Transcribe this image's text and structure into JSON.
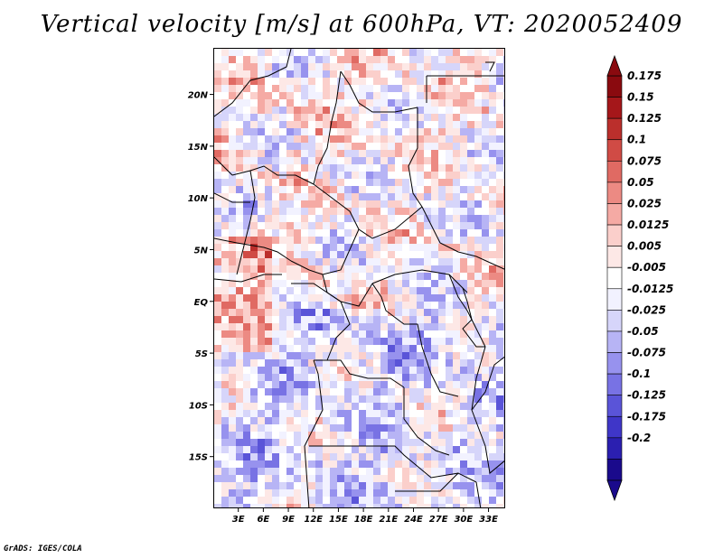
{
  "title": "Vertical velocity [m/s] at 600hPa, VT: 2020052409",
  "credit": "GrADS: IGES/COLA",
  "map": {
    "lon_range": [
      0,
      35
    ],
    "lat_range": [
      -20,
      24.5
    ],
    "lat_ticks": [
      {
        "value": 20,
        "label": "20N"
      },
      {
        "value": 15,
        "label": "15N"
      },
      {
        "value": 10,
        "label": "10N"
      },
      {
        "value": 5,
        "label": "5N"
      },
      {
        "value": 0,
        "label": "EQ"
      },
      {
        "value": -5,
        "label": "5S"
      },
      {
        "value": -10,
        "label": "10S"
      },
      {
        "value": -15,
        "label": "15S"
      }
    ],
    "lon_ticks": [
      {
        "value": 3,
        "label": "3E"
      },
      {
        "value": 6,
        "label": "6E"
      },
      {
        "value": 9,
        "label": "9E"
      },
      {
        "value": 12,
        "label": "12E"
      },
      {
        "value": 15,
        "label": "15E"
      },
      {
        "value": 18,
        "label": "18E"
      },
      {
        "value": 21,
        "label": "21E"
      },
      {
        "value": 24,
        "label": "24E"
      },
      {
        "value": 27,
        "label": "27E"
      },
      {
        "value": 30,
        "label": "30E"
      },
      {
        "value": 33,
        "label": "33E"
      }
    ]
  },
  "colorbar": {
    "colors": [
      "#1a0a8c",
      "#2b1fb0",
      "#3f36c8",
      "#5a54d8",
      "#7872e4",
      "#9792ee",
      "#b7b4f5",
      "#d6d5fa",
      "#f2f2ff",
      "#ffffff",
      "#fde8e6",
      "#fbcfcb",
      "#f5aaa4",
      "#ec8a83",
      "#e06a63",
      "#d04b45",
      "#bb2f2c",
      "#a5171a",
      "#8a0a0f"
    ],
    "labels": [
      "0.175",
      "0.15",
      "0.125",
      "0.1",
      "0.075",
      "0.05",
      "0.025",
      "0.0125",
      "0.005",
      "-0.005",
      "-0.0125",
      "-0.025",
      "-0.05",
      "-0.075",
      "-0.1",
      "-0.125",
      "-0.175",
      "-0.2"
    ]
  }
}
